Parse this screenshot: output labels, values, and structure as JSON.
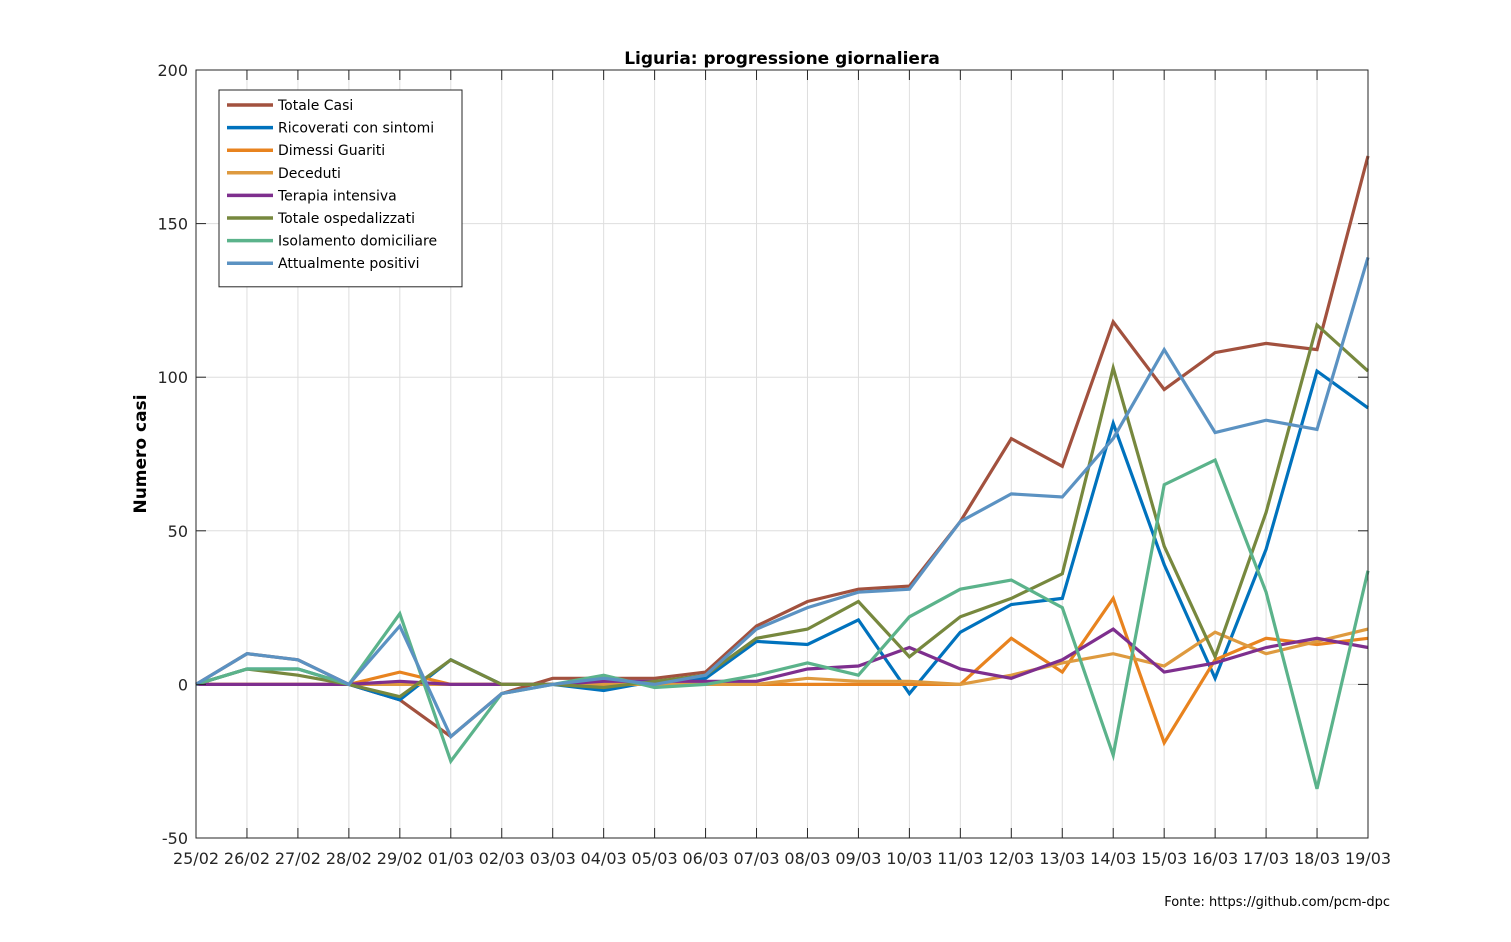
{
  "chart_data": {
    "type": "line",
    "title": "Liguria: progressione giornaliera",
    "xlabel": "",
    "ylabel": "Numero casi",
    "ylim": [
      -50,
      200
    ],
    "yticks": [
      -50,
      0,
      50,
      100,
      150,
      200
    ],
    "grid": true,
    "legend_position": "top-left",
    "categories": [
      "25/02",
      "26/02",
      "27/02",
      "28/02",
      "29/02",
      "01/03",
      "02/03",
      "03/03",
      "04/03",
      "05/03",
      "06/03",
      "07/03",
      "08/03",
      "09/03",
      "10/03",
      "11/03",
      "12/03",
      "13/03",
      "14/03",
      "15/03",
      "16/03",
      "17/03",
      "18/03",
      "19/03"
    ],
    "series": [
      {
        "name": "Totale Casi",
        "color": "#a2513e",
        "values": [
          0,
          10,
          8,
          0,
          -5,
          -17,
          -3,
          2,
          2,
          2,
          4,
          19,
          27,
          31,
          32,
          53,
          80,
          71,
          118,
          96,
          108,
          111,
          109,
          172
        ]
      },
      {
        "name": "Ricoverati con sintomi",
        "color": "#0072bd",
        "values": [
          0,
          5,
          5,
          0,
          -5,
          8,
          0,
          0,
          -2,
          1,
          2,
          14,
          13,
          21,
          -3,
          17,
          26,
          28,
          85,
          39,
          2,
          44,
          102,
          90
        ]
      },
      {
        "name": "Dimessi Guariti",
        "color": "#e8831f",
        "values": [
          0,
          0,
          0,
          0,
          4,
          0,
          0,
          0,
          0,
          0,
          0,
          0,
          0,
          0,
          0,
          0,
          15,
          4,
          28,
          -19,
          8,
          15,
          13,
          15
        ]
      },
      {
        "name": "Deceduti",
        "color": "#de9a3f",
        "values": [
          0,
          0,
          0,
          0,
          0,
          0,
          0,
          0,
          0,
          0,
          0,
          0,
          2,
          1,
          1,
          0,
          3,
          7,
          10,
          6,
          17,
          10,
          14,
          18
        ]
      },
      {
        "name": "Terapia intensiva",
        "color": "#7e2f8e",
        "values": [
          0,
          0,
          0,
          0,
          1,
          0,
          0,
          0,
          1,
          1,
          1,
          1,
          5,
          6,
          12,
          5,
          2,
          8,
          18,
          4,
          7,
          12,
          15,
          12
        ]
      },
      {
        "name": "Totale ospedalizzati",
        "color": "#77883e",
        "values": [
          0,
          5,
          3,
          0,
          -4,
          8,
          0,
          0,
          -1,
          1,
          3,
          15,
          18,
          27,
          9,
          22,
          28,
          36,
          103,
          45,
          9,
          56,
          117,
          102
        ]
      },
      {
        "name": "Isolamento domiciliare",
        "color": "#5bb38b",
        "values": [
          0,
          5,
          5,
          0,
          23,
          -25,
          -3,
          0,
          3,
          -1,
          0,
          3,
          7,
          3,
          22,
          31,
          34,
          25,
          -23,
          65,
          73,
          30,
          -34,
          37
        ]
      },
      {
        "name": "Attualmente positivi",
        "color": "#5b92c2",
        "values": [
          0,
          10,
          8,
          0,
          19,
          -17,
          -3,
          0,
          2,
          0,
          3,
          18,
          25,
          30,
          31,
          53,
          62,
          61,
          80,
          109,
          82,
          86,
          83,
          139
        ]
      }
    ],
    "source_note": "Fonte: https://github.com/pcm-dpc"
  }
}
